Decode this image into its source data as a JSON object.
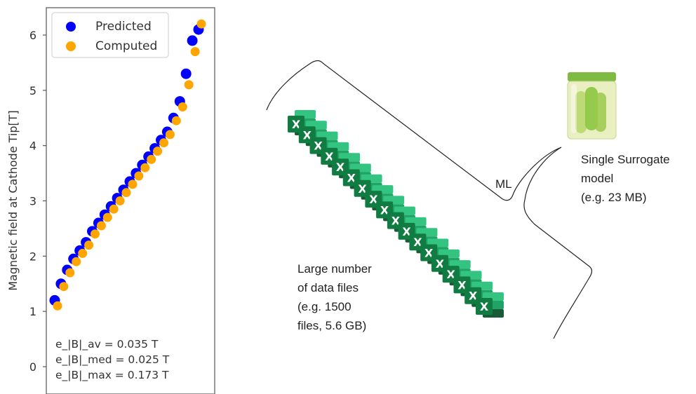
{
  "chart_data": {
    "type": "scatter",
    "title": "",
    "xlabel": "",
    "ylabel": "Magnetic field at Cathode Tip[T]",
    "ylim": [
      -0.4,
      6.55
    ],
    "yticks": [
      "0",
      "1",
      "2",
      "3",
      "4",
      "5",
      "6"
    ],
    "grid": false,
    "legend_position": "top-left",
    "x_axis_visible": false,
    "series": [
      {
        "name": "Predicted",
        "color": "#0000ff",
        "values": [
          1.2,
          1.5,
          1.75,
          1.95,
          2.1,
          2.25,
          2.45,
          2.6,
          2.75,
          2.9,
          3.05,
          3.2,
          3.35,
          3.5,
          3.65,
          3.8,
          3.95,
          4.1,
          4.25,
          4.5,
          4.8,
          5.3,
          5.9,
          6.1
        ]
      },
      {
        "name": "Computed",
        "color": "#ffa500",
        "values": [
          1.1,
          1.45,
          1.7,
          1.9,
          2.05,
          2.2,
          2.4,
          2.55,
          2.7,
          2.85,
          3.0,
          3.15,
          3.3,
          3.45,
          3.6,
          3.75,
          3.9,
          4.05,
          4.2,
          4.45,
          4.7,
          5.1,
          5.7,
          6.2
        ]
      }
    ],
    "stats": [
      "e_|B|_av = 0.035 T",
      "e_|B|_med = 0.025 T",
      "e_|B|_max = 0.173 T"
    ]
  },
  "diagram": {
    "excel_icon_letter": "X",
    "excel_file_count_drawn": 18,
    "colors": {
      "excel_green_dark": "#185c37",
      "excel_green": "#21a366",
      "excel_green_light": "#33c481",
      "excel_letter_bg": "#107c41",
      "jar_lid": "#7fba42",
      "jar_body": "#e9efc0",
      "jar_pickle": "#8cc63f",
      "line": "#222222"
    },
    "ml_label": "ML",
    "surrogate_label_lines": [
      "Single Surrogate",
      "model",
      "(e.g. 23 MB)"
    ],
    "data_files_label_lines": [
      "Large number",
      "of data files",
      "(e.g. 1500",
      "files, 5.6 GB)"
    ],
    "icons": [
      "excel-file-icon",
      "pickle-jar-icon"
    ]
  }
}
